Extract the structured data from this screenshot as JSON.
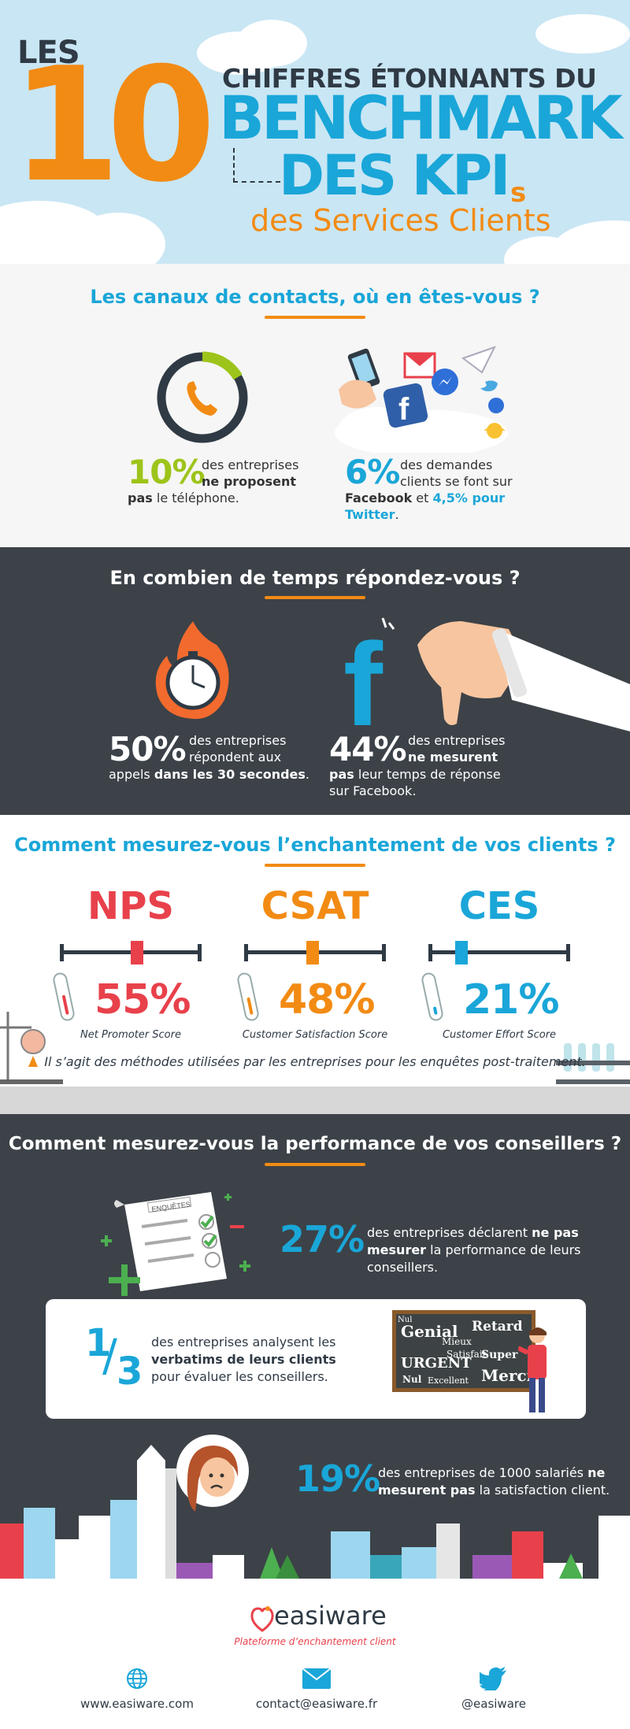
{
  "header": {
    "les": "LES",
    "ten": "10",
    "line1": "CHIFFRES ÉTONNANTS DU",
    "line2": "BENCHMARK",
    "line3": "DES KPI",
    "line3_suffix": "s",
    "line4": "des Services Clients",
    "colors": {
      "orange": "#f28b14",
      "blue": "#1aa6d8",
      "dark": "#2f3a45",
      "sky": "#c9e6f4"
    }
  },
  "section1": {
    "title": "Les canaux de contacts, où en êtes-vous ?",
    "stat1": {
      "pct": "10%",
      "text_a": "des entreprises",
      "text_b": "ne proposent",
      "text_c": "pas",
      "text_d": "le téléphone.",
      "icon": "phone-icon"
    },
    "stat2": {
      "pct": "6%",
      "text_a": "des demandes",
      "text_b": "clients se font sur",
      "text_c": "Facebook",
      "text_d": "et",
      "text_e": "4,5% pour",
      "text_f": "Twitter",
      "text_g": ".",
      "icon": "social-media-icon"
    }
  },
  "section2": {
    "title": "En combien de temps répondez-vous ?",
    "stat1": {
      "pct": "50%",
      "text_a": "des entreprises",
      "text_b": "répondent aux",
      "text_c": "appels",
      "text_d": "dans les 30 secondes",
      "text_e": ".",
      "icon": "stopwatch-fire-icon"
    },
    "stat2": {
      "pct": "44%",
      "text_a": "des entreprises",
      "text_b": "ne mesurent",
      "text_c": "pas",
      "text_d": "leur temps de réponse",
      "text_e": "sur Facebook.",
      "icon": "facebook-thumbs-down-icon"
    }
  },
  "section3": {
    "title": "Comment mesurez-vous l’enchantement de vos clients ?",
    "kpis": [
      {
        "name": "NPS",
        "pct": "55%",
        "label": "Net Promoter Score",
        "color": "#e8414b",
        "level": 0.55
      },
      {
        "name": "CSAT",
        "pct": "48%",
        "label": "Customer Satisfaction Score",
        "color": "#f28b14",
        "level": 0.48
      },
      {
        "name": "CES",
        "pct": "21%",
        "label": "Customer Effort Score",
        "color": "#1aa6d8",
        "level": 0.21
      }
    ],
    "note": "Il s’agit des méthodes utilisées par les entreprises pour les enquêtes post-traitement."
  },
  "section4": {
    "title": "Comment mesurez-vous la performance de vos conseillers ?",
    "stat1": {
      "pct": "27%",
      "text_a": "des entreprises déclarent",
      "text_b": "ne pas",
      "text_c": "mesurer",
      "text_d": "la performance de leurs",
      "text_e": "conseillers.",
      "survey_label": "ENQUÊTES"
    },
    "stat2": {
      "num": "1",
      "den": "3",
      "text_a": "des entreprises analysent les",
      "text_b": "verbatims de leurs clients",
      "text_c": "pour évaluer les conseillers.",
      "board_words": [
        "Genial",
        "Retard",
        "Nul",
        "Mieux",
        "Satisfait",
        "Super",
        "URGENT",
        "Merci",
        "Nul",
        "Excellent"
      ]
    },
    "stat3": {
      "pct": "19%",
      "text_a": "des entreprises de 1000 salariés",
      "text_b": "ne",
      "text_c": "mesurent pas",
      "text_d": "la satisfaction client."
    }
  },
  "footer": {
    "brand": "easiware",
    "tagline": "Plateforme d’enchantement client",
    "web": "www.easiware.com",
    "email": "contact@easiware.fr",
    "twitter": "@easiware"
  }
}
